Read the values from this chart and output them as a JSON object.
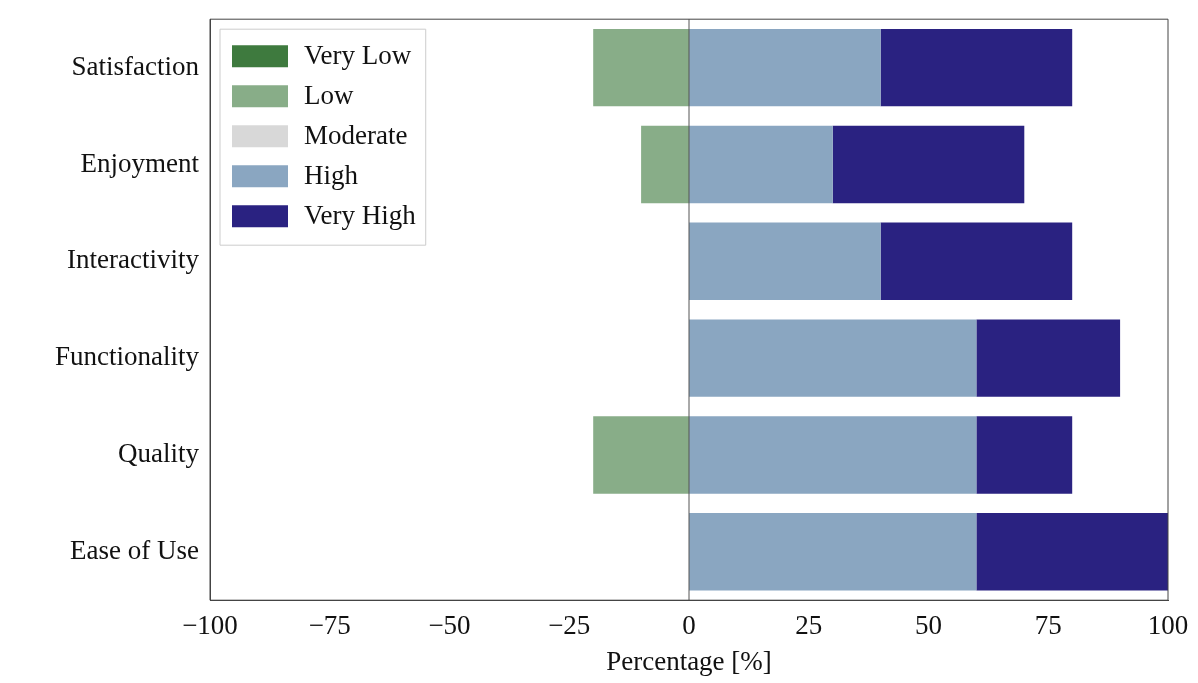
{
  "chart_data": {
    "type": "bar",
    "orientation": "horizontal",
    "stacked": true,
    "categories": [
      "Satisfaction",
      "Enjoyment",
      "Interactivity",
      "Functionality",
      "Quality",
      "Ease of Use"
    ],
    "series": [
      {
        "name": "Very Low",
        "color": "#3e7a3e",
        "values": [
          0,
          0,
          0,
          0,
          0,
          0
        ]
      },
      {
        "name": "Low",
        "color": "#88ad88",
        "values": [
          -20,
          -10,
          0,
          0,
          -20,
          0
        ]
      },
      {
        "name": "Moderate",
        "color": "#d8d8d8",
        "values": [
          0,
          0,
          0,
          0,
          0,
          0
        ]
      },
      {
        "name": "High",
        "color": "#8aa6c1",
        "values": [
          40,
          30,
          40,
          60,
          60,
          60
        ]
      },
      {
        "name": "Very High",
        "color": "#2a2281",
        "values": [
          40,
          40,
          40,
          30,
          20,
          40
        ]
      }
    ],
    "xlabel": "Percentage [%]",
    "xlim": [
      -100,
      100
    ],
    "xticks": [
      {
        "value": -100,
        "label": "−100"
      },
      {
        "value": -75,
        "label": "−75"
      },
      {
        "value": -50,
        "label": "−50"
      },
      {
        "value": -25,
        "label": "−25"
      },
      0,
      25,
      50,
      75,
      100
    ],
    "ref_lines": [
      {
        "axis": "x",
        "value": 0,
        "color": "#555555"
      }
    ],
    "grid": false,
    "legend": "top left"
  }
}
